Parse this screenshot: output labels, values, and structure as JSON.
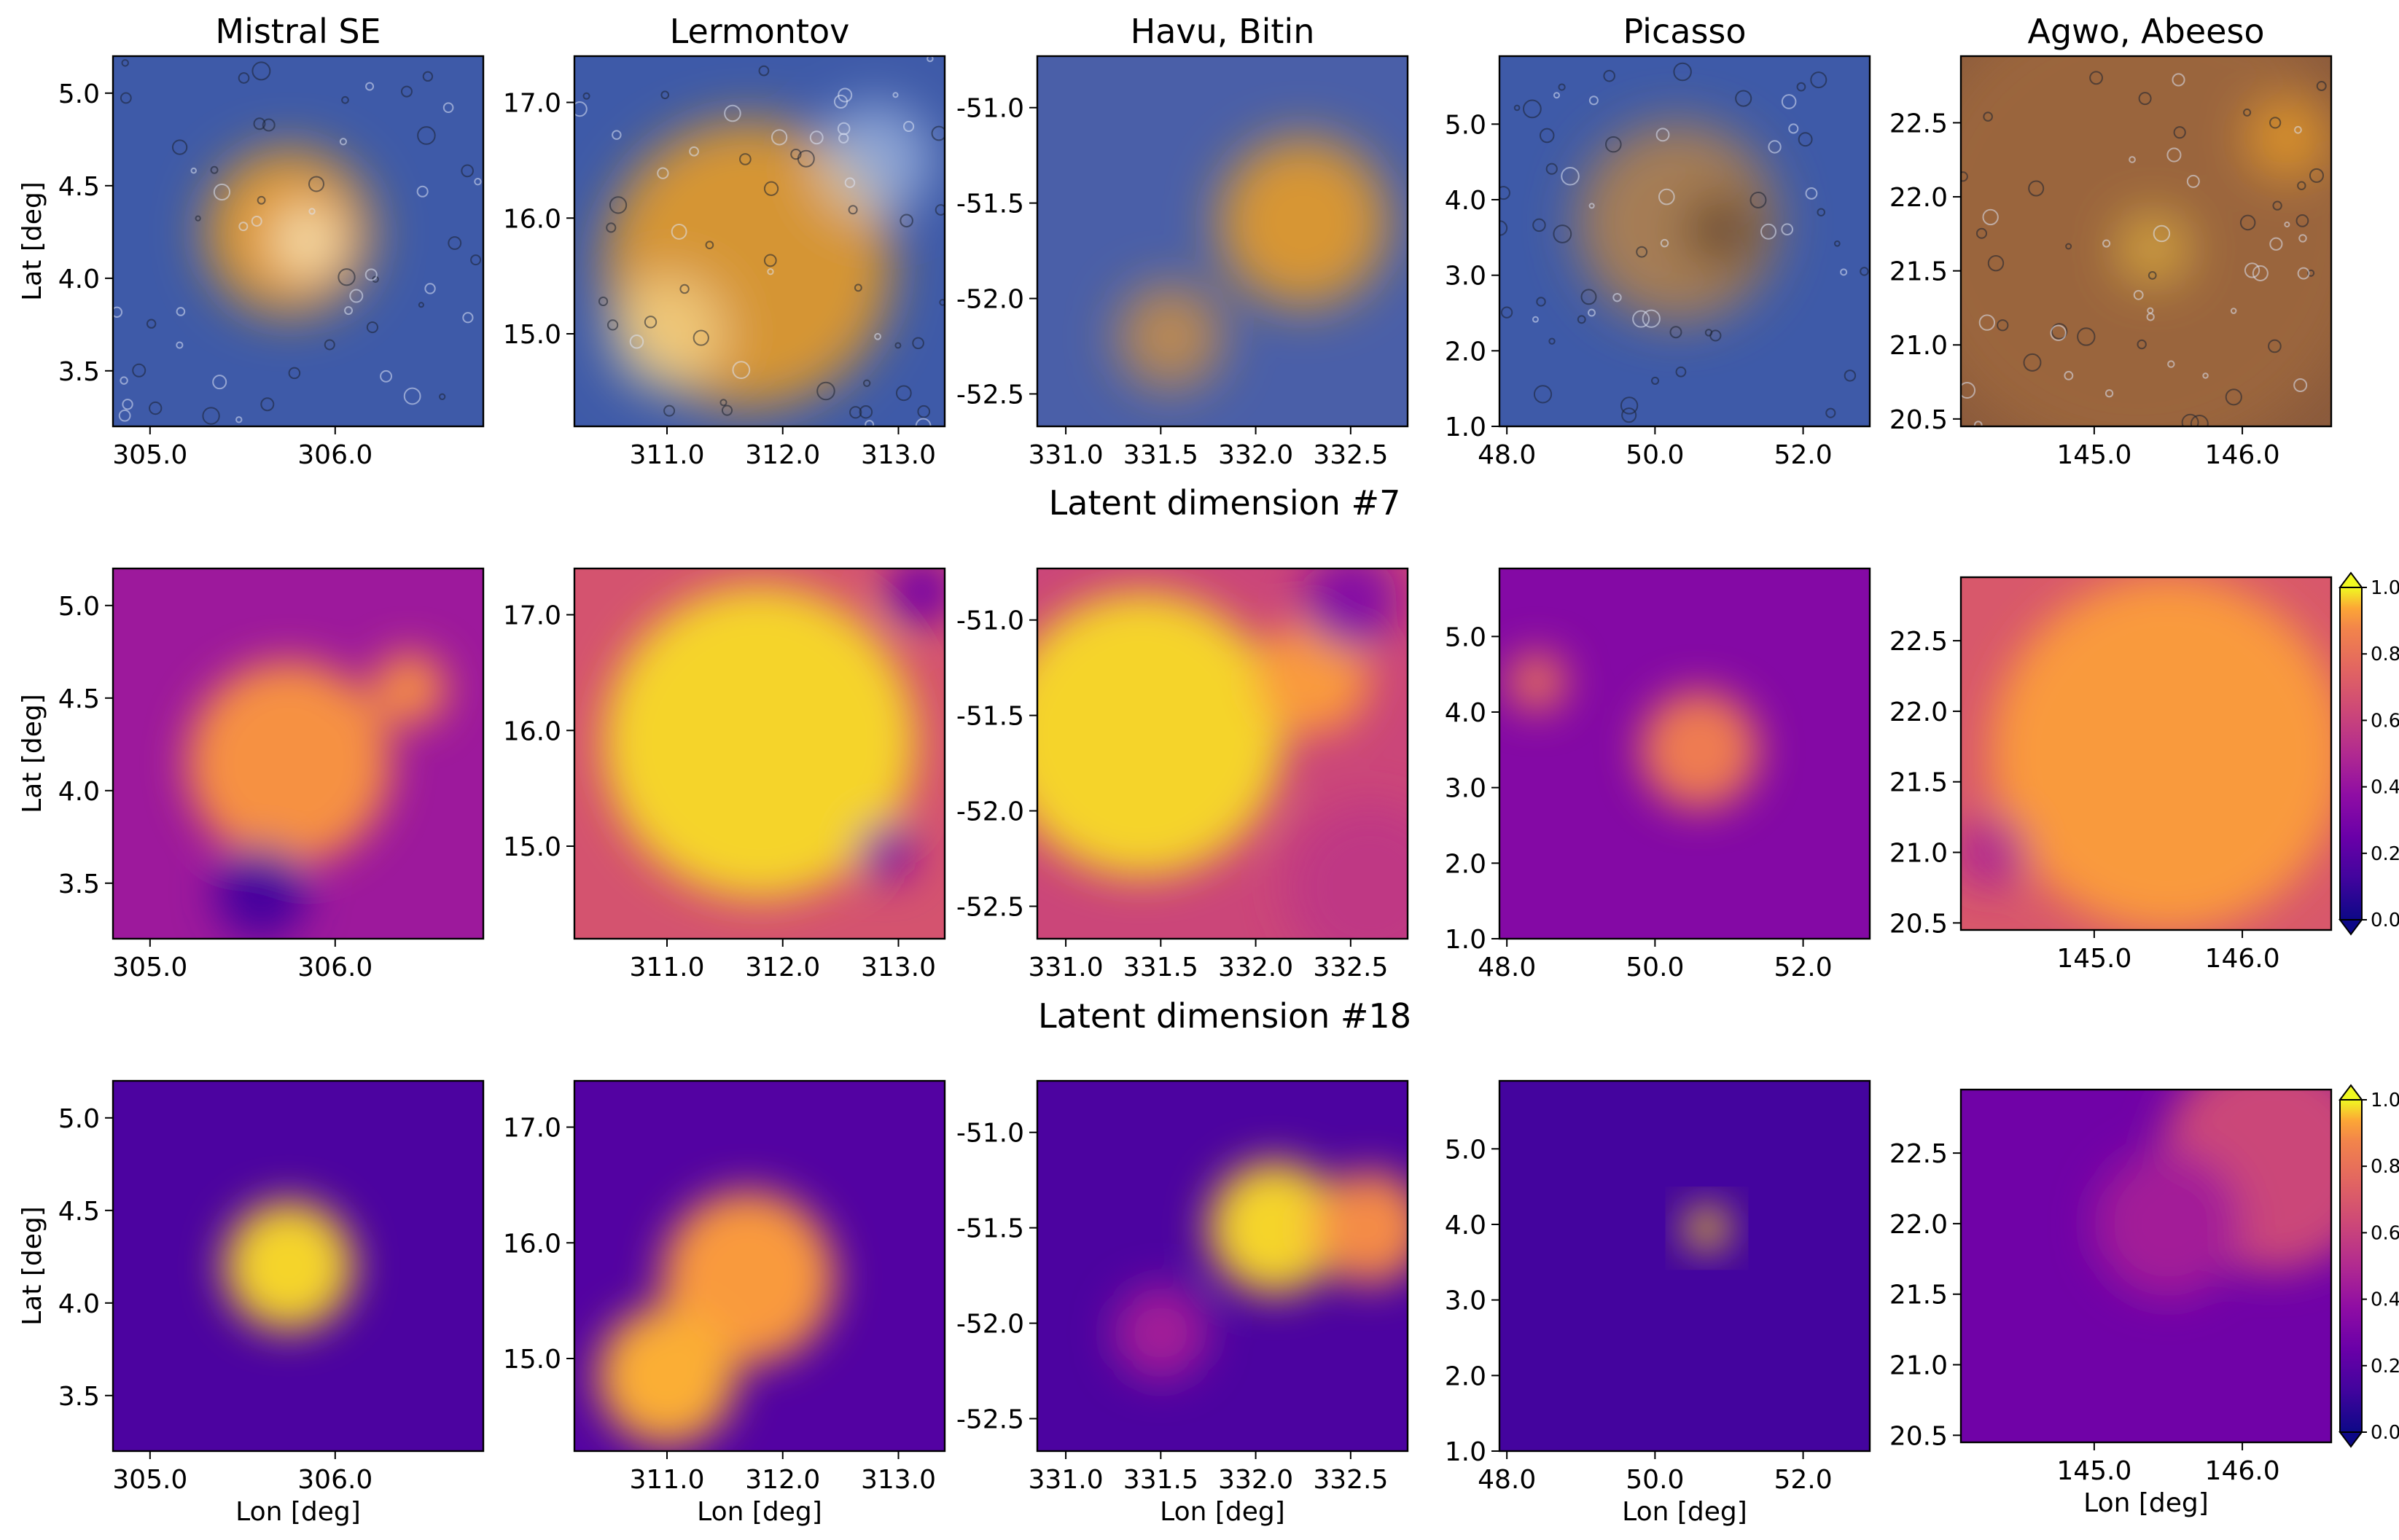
{
  "chart_data": {
    "type": "heatmap",
    "panel_titles": [
      "Mistral SE",
      "Lermontov",
      "Havu, Bitin",
      "Picasso",
      "Agwo, Abeeso"
    ],
    "row_titles": [
      "",
      "Latent dimension #7",
      "Latent dimension #18"
    ],
    "xlabel": "Lon [deg]",
    "ylabel": "Lat [deg]",
    "colormap": "plasma",
    "colors": {
      "low": "#0d0887",
      "mid": "#cc4778",
      "high": "#f0f921"
    },
    "columns": [
      {
        "xlim": [
          304.8,
          306.8
        ],
        "ylim": [
          3.2,
          5.2
        ],
        "xticks": [
          305.0,
          306.0
        ],
        "xtick_labels": [
          "305.0",
          "306.0"
        ],
        "yticks": [
          3.5,
          4.0,
          4.5,
          5.0
        ],
        "ytick_labels": [
          "3.5",
          "4.0",
          "4.5",
          "5.0"
        ]
      },
      {
        "xlim": [
          310.2,
          313.4
        ],
        "ylim": [
          14.2,
          17.4
        ],
        "xticks": [
          311.0,
          312.0,
          313.0
        ],
        "xtick_labels": [
          "311.0",
          "312.0",
          "313.0"
        ],
        "yticks": [
          15.0,
          16.0,
          17.0
        ],
        "ytick_labels": [
          "15.0",
          "16.0",
          "17.0"
        ]
      },
      {
        "xlim": [
          330.85,
          332.8
        ],
        "ylim": [
          -52.67,
          -50.73
        ],
        "xticks": [
          331.0,
          331.5,
          332.0,
          332.5
        ],
        "xtick_labels": [
          "331.0",
          "331.5",
          "332.0",
          "332.5"
        ],
        "yticks": [
          -52.5,
          -52.0,
          -51.5,
          -51.0
        ],
        "ytick_labels": [
          "-52.5",
          "-52.0",
          "-51.5",
          "-51.0"
        ]
      },
      {
        "xlim": [
          47.9,
          52.9
        ],
        "ylim": [
          1.0,
          5.9
        ],
        "xticks": [
          48.0,
          50.0,
          52.0
        ],
        "xtick_labels": [
          "48.0",
          "50.0",
          "52.0"
        ],
        "yticks": [
          1.0,
          2.0,
          3.0,
          4.0,
          5.0
        ],
        "ytick_labels": [
          "1.0",
          "2.0",
          "3.0",
          "4.0",
          "5.0"
        ]
      },
      {
        "xlim": [
          144.1,
          146.6
        ],
        "ylim": [
          20.45,
          22.95
        ],
        "xticks": [
          145.0,
          146.0
        ],
        "xtick_labels": [
          "145.0",
          "146.0"
        ],
        "yticks": [
          20.5,
          21.0,
          21.5,
          22.0,
          22.5
        ],
        "ytick_labels": [
          "20.5",
          "21.0",
          "21.5",
          "22.0",
          "22.5"
        ]
      }
    ],
    "colorbar": {
      "range": [
        0.0,
        1.0
      ],
      "ticks": [
        "0.0",
        "0.2",
        "0.4",
        "0.6",
        "0.8",
        "1.0"
      ],
      "extend": "both"
    },
    "rows": [
      {
        "kind": "image",
        "panels": [
          {
            "blobs": [
              {
                "x": 305.75,
                "y": 4.25,
                "r": 0.45,
                "color": "#f0a020",
                "strength": 0.9
              },
              {
                "x": 305.85,
                "y": 4.2,
                "r": 0.18,
                "color": "#fff4d0",
                "strength": 0.8
              }
            ]
          },
          {
            "blobs": [
              {
                "x": 311.7,
                "y": 15.6,
                "r": 1.25,
                "color": "#f0a020",
                "strength": 0.85
              },
              {
                "x": 311.0,
                "y": 15.0,
                "r": 0.5,
                "color": "#ffe9a8",
                "strength": 0.6
              },
              {
                "x": 312.8,
                "y": 16.5,
                "r": 0.5,
                "color": "#d8ecff",
                "strength": 0.5
              }
            ]
          },
          {
            "blobs": [
              {
                "x": 332.25,
                "y": -51.6,
                "r": 0.45,
                "color": "#f0a020",
                "strength": 0.85
              },
              {
                "x": 331.55,
                "y": -52.2,
                "r": 0.28,
                "color": "#e89a30",
                "strength": 0.7
              }
            ]
          },
          {
            "blobs": [
              {
                "x": 50.3,
                "y": 3.7,
                "r": 1.35,
                "color": "#c88a3a",
                "strength": 0.75
              },
              {
                "x": 50.9,
                "y": 3.6,
                "r": 0.5,
                "color": "#2a1608",
                "strength": 0.5
              }
            ]
          },
          {
            "blobs": [
              {
                "x": 145.3,
                "y": 21.8,
                "r": 1.6,
                "color": "#a06a3c",
                "strength": 0.75
              },
              {
                "x": 146.3,
                "y": 22.4,
                "r": 0.25,
                "color": "#f0a020",
                "strength": 0.8
              },
              {
                "x": 145.4,
                "y": 21.65,
                "r": 0.22,
                "color": "#f0c040",
                "strength": 0.7
              }
            ]
          }
        ]
      },
      {
        "kind": "heatmap",
        "panels": [
          {
            "background": 0.38,
            "blobs": [
              {
                "x": 305.75,
                "y": 4.15,
                "r": 0.55,
                "v": 0.82
              },
              {
                "x": 306.4,
                "y": 4.55,
                "r": 0.2,
                "v": 0.8
              },
              {
                "x": 305.6,
                "y": 3.45,
                "r": 0.25,
                "v": 0.12
              }
            ]
          },
          {
            "background": 0.6,
            "blobs": [
              {
                "x": 311.8,
                "y": 15.9,
                "r": 1.35,
                "v": 0.95
              },
              {
                "x": 313.2,
                "y": 17.2,
                "r": 0.3,
                "v": 0.25
              },
              {
                "x": 312.9,
                "y": 14.95,
                "r": 0.25,
                "v": 0.3
              }
            ]
          },
          {
            "background": 0.55,
            "blobs": [
              {
                "x": 331.4,
                "y": -51.6,
                "r": 0.75,
                "v": 0.95
              },
              {
                "x": 332.3,
                "y": -51.3,
                "r": 0.3,
                "v": 0.85
              },
              {
                "x": 332.6,
                "y": -52.4,
                "r": 0.45,
                "v": 0.5
              },
              {
                "x": 332.5,
                "y": -50.9,
                "r": 0.25,
                "v": 0.3
              }
            ]
          },
          {
            "background": 0.3,
            "blobs": [
              {
                "x": 50.6,
                "y": 3.5,
                "r": 0.8,
                "v": 0.75
              },
              {
                "x": 48.4,
                "y": 4.4,
                "r": 0.4,
                "v": 0.7
              }
            ]
          },
          {
            "background": 0.62,
            "blobs": [
              {
                "x": 145.5,
                "y": 21.7,
                "r": 1.2,
                "v": 0.85
              },
              {
                "x": 144.3,
                "y": 21.0,
                "r": 0.25,
                "v": 0.45
              }
            ]
          }
        ]
      },
      {
        "kind": "heatmap",
        "panels": [
          {
            "background": 0.14,
            "blobs": [
              {
                "x": 305.75,
                "y": 4.2,
                "r": 0.35,
                "v": 0.95
              }
            ]
          },
          {
            "background": 0.16,
            "blobs": [
              {
                "x": 311.7,
                "y": 15.7,
                "r": 0.75,
                "v": 0.85
              },
              {
                "x": 311.0,
                "y": 14.85,
                "r": 0.6,
                "v": 0.9
              }
            ]
          },
          {
            "background": 0.14,
            "blobs": [
              {
                "x": 332.1,
                "y": -51.5,
                "r": 0.35,
                "v": 0.95
              },
              {
                "x": 332.6,
                "y": -51.5,
                "r": 0.3,
                "v": 0.8
              },
              {
                "x": 331.5,
                "y": -52.05,
                "r": 0.25,
                "v": 0.4
              }
            ]
          },
          {
            "background": 0.12,
            "blobs": [
              {
                "x": 50.7,
                "y": 3.95,
                "r": 0.28,
                "v": 0.95
              }
            ]
          },
          {
            "background": 0.24,
            "blobs": [
              {
                "x": 146.2,
                "y": 22.45,
                "r": 0.75,
                "v": 0.55
              },
              {
                "x": 145.5,
                "y": 22.0,
                "r": 0.5,
                "v": 0.4
              }
            ]
          }
        ]
      }
    ]
  }
}
